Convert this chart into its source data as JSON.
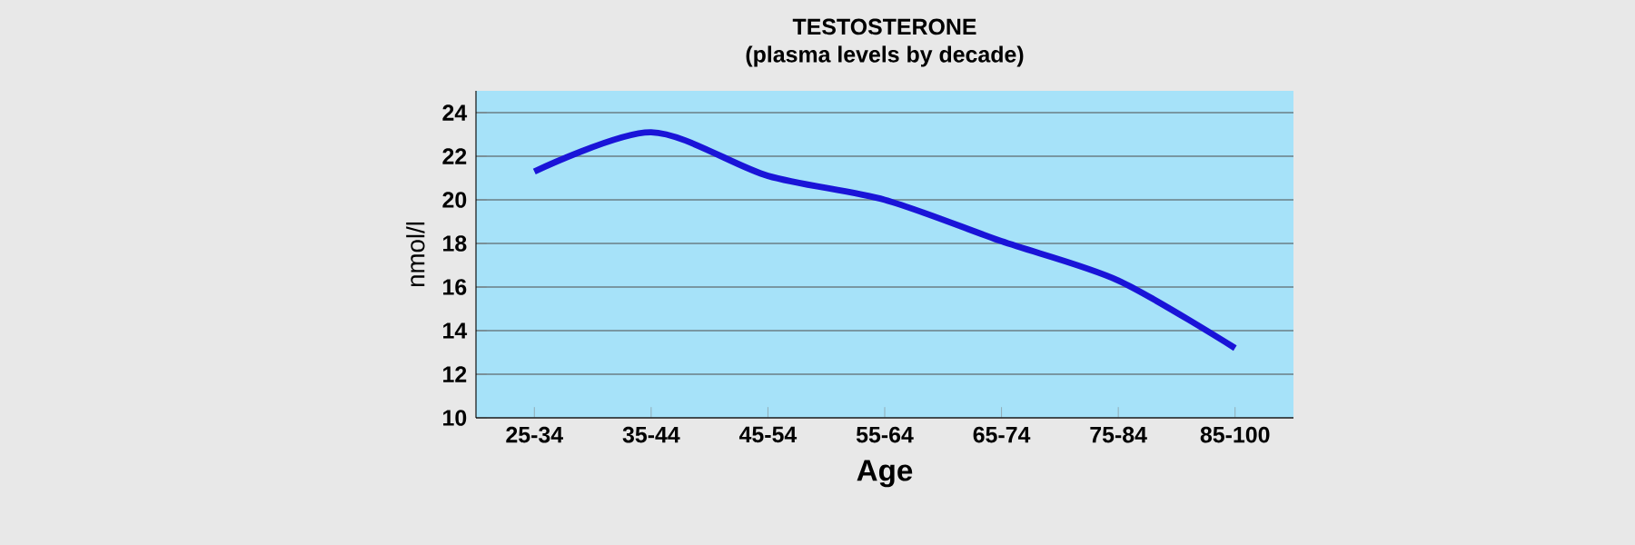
{
  "chart_data": {
    "type": "line",
    "title": "TESTOSTERONE",
    "subtitle": "(plasma levels by decade)",
    "xlabel": "Age",
    "ylabel": "nmol/l",
    "categories": [
      "25-34",
      "35-44",
      "45-54",
      "55-64",
      "65-74",
      "75-84",
      "85-100"
    ],
    "series": [
      {
        "color": "#1a14d8",
        "values": [
          21.3,
          23.1,
          21.1,
          20.0,
          18.1,
          16.3,
          13.2
        ]
      }
    ],
    "ylim": [
      10,
      25
    ],
    "yticks": [
      10,
      12,
      14,
      16,
      18,
      20,
      22,
      24
    ],
    "grid": "y",
    "marker": "none",
    "line_style": "solid"
  }
}
